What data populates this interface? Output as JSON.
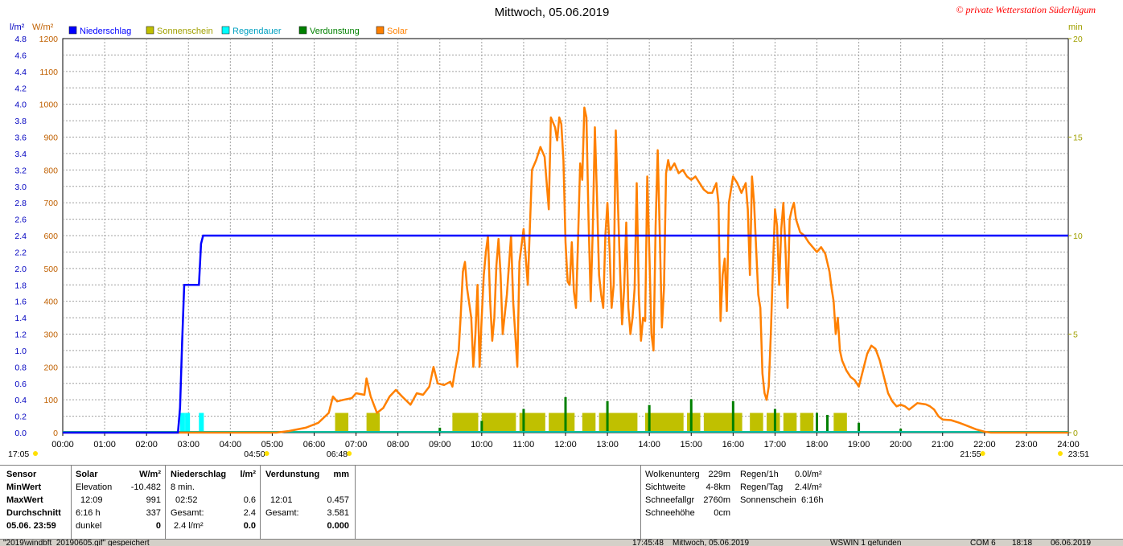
{
  "chart_data": {
    "type": "line",
    "title": "Mittwoch, 05.06.2019",
    "copyright": "© private Wetterstation Süderlügum",
    "units": {
      "left_rain": "l/m²",
      "left_solar": "W/m²",
      "right": "min"
    },
    "legend": [
      {
        "name": "Niederschlag",
        "color": "#0000ff"
      },
      {
        "name": "Sonnenschein",
        "color": "#c0c000"
      },
      {
        "name": "Regendauer",
        "color": "#00ffff"
      },
      {
        "name": "Verdunstung",
        "color": "#008000"
      },
      {
        "name": "Solar",
        "color": "#ff8000"
      }
    ],
    "x_ticks": [
      "00:00",
      "01:00",
      "02:00",
      "03:00",
      "04:00",
      "05:00",
      "06:00",
      "07:00",
      "08:00",
      "09:00",
      "10:00",
      "11:00",
      "12:00",
      "13:00",
      "14:00",
      "15:00",
      "16:00",
      "17:00",
      "18:00",
      "19:00",
      "20:00",
      "21:00",
      "22:00",
      "23:00",
      "24:00"
    ],
    "solar_ticks": [
      "1200",
      "1100",
      "1000",
      "900",
      "800",
      "700",
      "600",
      "500",
      "400",
      "300",
      "200",
      "100",
      "0"
    ],
    "rain_ticks": [
      "4.8",
      "4.6",
      "4.4",
      "4.2",
      "4.0",
      "3.8",
      "3.6",
      "3.4",
      "3.2",
      "3.0",
      "2.8",
      "2.6",
      "2.4",
      "2.2",
      "2.0",
      "1.8",
      "1.6",
      "1.4",
      "1.2",
      "1.0",
      "0.8",
      "0.6",
      "0.4",
      "0.2",
      "0.0"
    ],
    "right_ticks": [
      "20",
      "15",
      "10",
      "5",
      "0"
    ],
    "ylim_solar": [
      0,
      1200
    ],
    "ylim_rain": [
      0,
      4.8
    ],
    "ylim_right": [
      0,
      20
    ],
    "xlim_hours": [
      0,
      24
    ],
    "grid": true,
    "astro_labels": [
      {
        "text": "17:05",
        "pos": "bottom-left"
      },
      {
        "text": "04:50",
        "hour": 4.83
      },
      {
        "text": "06:48",
        "hour": 6.8
      },
      {
        "text": "21:55",
        "hour": 21.92
      },
      {
        "text": "23:51",
        "pos": "bottom-right"
      }
    ],
    "rain_series": [
      [
        0,
        0
      ],
      [
        2.75,
        0
      ],
      [
        2.8,
        0.3
      ],
      [
        2.85,
        1.1
      ],
      [
        2.9,
        1.8
      ],
      [
        3.25,
        1.8
      ],
      [
        3.3,
        2.3
      ],
      [
        3.35,
        2.4
      ],
      [
        24,
        2.4
      ]
    ],
    "rain_duration": [
      [
        2.8,
        1
      ],
      [
        2.92,
        1
      ],
      [
        3.25,
        1
      ]
    ],
    "sunshine": [
      [
        6.5,
        1
      ],
      [
        7.25,
        1
      ],
      [
        9.3,
        1
      ],
      [
        9.6,
        1
      ],
      [
        10.0,
        1
      ],
      [
        10.2,
        1
      ],
      [
        10.5,
        1
      ],
      [
        10.9,
        1
      ],
      [
        11.2,
        1
      ],
      [
        11.6,
        1
      ],
      [
        11.9,
        1
      ],
      [
        12.4,
        1
      ],
      [
        12.8,
        1
      ],
      [
        13.0,
        1
      ],
      [
        13.2,
        1
      ],
      [
        13.4,
        1
      ],
      [
        13.9,
        1
      ],
      [
        14.2,
        1
      ],
      [
        14.5,
        1
      ],
      [
        14.9,
        1
      ],
      [
        15.3,
        1
      ],
      [
        15.6,
        1
      ],
      [
        15.9,
        1
      ],
      [
        16.4,
        1
      ],
      [
        16.8,
        1
      ],
      [
        17.2,
        1
      ],
      [
        17.6,
        1
      ],
      [
        18.4,
        1
      ]
    ],
    "evaporation": [
      [
        9.0,
        0.25
      ],
      [
        10.0,
        0.6
      ],
      [
        11.0,
        1.2
      ],
      [
        12.0,
        1.8
      ],
      [
        13.0,
        1.6
      ],
      [
        14.0,
        1.4
      ],
      [
        15.0,
        1.7
      ],
      [
        16.0,
        1.6
      ],
      [
        17.0,
        1.2
      ],
      [
        18.0,
        1.0
      ],
      [
        18.25,
        0.9
      ],
      [
        19.0,
        0.5
      ],
      [
        20.0,
        0.2
      ],
      [
        21.9,
        0.1
      ]
    ],
    "solar_series": [
      [
        0,
        0
      ],
      [
        5.1,
        0
      ],
      [
        5.4,
        5
      ],
      [
        5.8,
        15
      ],
      [
        6.1,
        30
      ],
      [
        6.35,
        60
      ],
      [
        6.45,
        110
      ],
      [
        6.55,
        95
      ],
      [
        6.7,
        100
      ],
      [
        6.9,
        105
      ],
      [
        7.0,
        120
      ],
      [
        7.2,
        115
      ],
      [
        7.25,
        165
      ],
      [
        7.35,
        110
      ],
      [
        7.5,
        60
      ],
      [
        7.65,
        75
      ],
      [
        7.8,
        110
      ],
      [
        7.95,
        130
      ],
      [
        8.1,
        110
      ],
      [
        8.3,
        85
      ],
      [
        8.45,
        120
      ],
      [
        8.6,
        115
      ],
      [
        8.75,
        140
      ],
      [
        8.85,
        200
      ],
      [
        8.95,
        150
      ],
      [
        9.1,
        145
      ],
      [
        9.25,
        155
      ],
      [
        9.3,
        140
      ],
      [
        9.35,
        180
      ],
      [
        9.45,
        250
      ],
      [
        9.5,
        360
      ],
      [
        9.55,
        490
      ],
      [
        9.6,
        520
      ],
      [
        9.65,
        440
      ],
      [
        9.75,
        350
      ],
      [
        9.8,
        200
      ],
      [
        9.85,
        300
      ],
      [
        9.9,
        450
      ],
      [
        9.95,
        200
      ],
      [
        10.0,
        350
      ],
      [
        10.05,
        480
      ],
      [
        10.1,
        550
      ],
      [
        10.15,
        600
      ],
      [
        10.2,
        400
      ],
      [
        10.25,
        280
      ],
      [
        10.3,
        350
      ],
      [
        10.35,
        510
      ],
      [
        10.4,
        590
      ],
      [
        10.45,
        480
      ],
      [
        10.5,
        300
      ],
      [
        10.6,
        420
      ],
      [
        10.7,
        600
      ],
      [
        10.75,
        400
      ],
      [
        10.85,
        200
      ],
      [
        10.9,
        520
      ],
      [
        11.0,
        620
      ],
      [
        11.1,
        450
      ],
      [
        11.2,
        800
      ],
      [
        11.3,
        830
      ],
      [
        11.4,
        870
      ],
      [
        11.5,
        840
      ],
      [
        11.6,
        680
      ],
      [
        11.65,
        960
      ],
      [
        11.75,
        930
      ],
      [
        11.8,
        890
      ],
      [
        11.85,
        960
      ],
      [
        11.9,
        940
      ],
      [
        11.95,
        830
      ],
      [
        12.0,
        580
      ],
      [
        12.05,
        460
      ],
      [
        12.1,
        450
      ],
      [
        12.15,
        580
      ],
      [
        12.2,
        430
      ],
      [
        12.25,
        380
      ],
      [
        12.3,
        590
      ],
      [
        12.35,
        820
      ],
      [
        12.4,
        770
      ],
      [
        12.45,
        990
      ],
      [
        12.5,
        960
      ],
      [
        12.55,
        650
      ],
      [
        12.6,
        400
      ],
      [
        12.65,
        620
      ],
      [
        12.7,
        930
      ],
      [
        12.75,
        720
      ],
      [
        12.8,
        480
      ],
      [
        12.85,
        420
      ],
      [
        12.9,
        380
      ],
      [
        12.95,
        600
      ],
      [
        13.0,
        700
      ],
      [
        13.05,
        560
      ],
      [
        13.1,
        380
      ],
      [
        13.15,
        450
      ],
      [
        13.2,
        920
      ],
      [
        13.25,
        700
      ],
      [
        13.3,
        500
      ],
      [
        13.35,
        330
      ],
      [
        13.4,
        440
      ],
      [
        13.45,
        640
      ],
      [
        13.5,
        380
      ],
      [
        13.55,
        300
      ],
      [
        13.6,
        350
      ],
      [
        13.65,
        440
      ],
      [
        13.7,
        760
      ],
      [
        13.75,
        420
      ],
      [
        13.8,
        280
      ],
      [
        13.85,
        350
      ],
      [
        13.9,
        340
      ],
      [
        13.95,
        780
      ],
      [
        14.0,
        550
      ],
      [
        14.05,
        300
      ],
      [
        14.1,
        250
      ],
      [
        14.15,
        630
      ],
      [
        14.2,
        860
      ],
      [
        14.25,
        600
      ],
      [
        14.3,
        320
      ],
      [
        14.35,
        440
      ],
      [
        14.4,
        790
      ],
      [
        14.45,
        830
      ],
      [
        14.5,
        800
      ],
      [
        14.6,
        820
      ],
      [
        14.7,
        790
      ],
      [
        14.8,
        800
      ],
      [
        14.9,
        780
      ],
      [
        15.0,
        770
      ],
      [
        15.1,
        780
      ],
      [
        15.2,
        760
      ],
      [
        15.3,
        740
      ],
      [
        15.4,
        730
      ],
      [
        15.5,
        730
      ],
      [
        15.6,
        760
      ],
      [
        15.65,
        700
      ],
      [
        15.7,
        340
      ],
      [
        15.75,
        480
      ],
      [
        15.8,
        530
      ],
      [
        15.85,
        370
      ],
      [
        15.9,
        700
      ],
      [
        16.0,
        780
      ],
      [
        16.1,
        760
      ],
      [
        16.2,
        730
      ],
      [
        16.3,
        760
      ],
      [
        16.35,
        680
      ],
      [
        16.4,
        480
      ],
      [
        16.45,
        780
      ],
      [
        16.5,
        700
      ],
      [
        16.55,
        560
      ],
      [
        16.6,
        420
      ],
      [
        16.65,
        380
      ],
      [
        16.7,
        180
      ],
      [
        16.75,
        120
      ],
      [
        16.8,
        100
      ],
      [
        16.85,
        140
      ],
      [
        16.9,
        300
      ],
      [
        16.95,
        500
      ],
      [
        17.0,
        680
      ],
      [
        17.05,
        630
      ],
      [
        17.1,
        450
      ],
      [
        17.15,
        620
      ],
      [
        17.2,
        700
      ],
      [
        17.25,
        560
      ],
      [
        17.3,
        380
      ],
      [
        17.35,
        650
      ],
      [
        17.4,
        680
      ],
      [
        17.45,
        700
      ],
      [
        17.5,
        650
      ],
      [
        17.6,
        610
      ],
      [
        17.7,
        600
      ],
      [
        17.8,
        580
      ],
      [
        17.9,
        565
      ],
      [
        18.0,
        550
      ],
      [
        18.1,
        565
      ],
      [
        18.2,
        545
      ],
      [
        18.3,
        490
      ],
      [
        18.35,
        440
      ],
      [
        18.4,
        400
      ],
      [
        18.45,
        300
      ],
      [
        18.5,
        350
      ],
      [
        18.55,
        250
      ],
      [
        18.6,
        220
      ],
      [
        18.7,
        190
      ],
      [
        18.8,
        170
      ],
      [
        18.9,
        160
      ],
      [
        19.0,
        140
      ],
      [
        19.1,
        190
      ],
      [
        19.2,
        240
      ],
      [
        19.3,
        265
      ],
      [
        19.4,
        255
      ],
      [
        19.5,
        220
      ],
      [
        19.6,
        170
      ],
      [
        19.7,
        120
      ],
      [
        19.8,
        95
      ],
      [
        19.9,
        80
      ],
      [
        20.0,
        85
      ],
      [
        20.1,
        80
      ],
      [
        20.2,
        70
      ],
      [
        20.3,
        80
      ],
      [
        20.4,
        90
      ],
      [
        20.5,
        88
      ],
      [
        20.6,
        86
      ],
      [
        20.7,
        80
      ],
      [
        20.8,
        70
      ],
      [
        20.9,
        50
      ],
      [
        21.0,
        40
      ],
      [
        21.2,
        38
      ],
      [
        21.4,
        30
      ],
      [
        21.6,
        20
      ],
      [
        21.8,
        10
      ],
      [
        22.0,
        3
      ],
      [
        22.15,
        0
      ],
      [
        24,
        0
      ]
    ]
  },
  "stats": {
    "headers": {
      "sensor": "Sensor",
      "solar": "Solar",
      "solar_unit": "W/m²",
      "rain": "Niederschlag",
      "rain_unit": "l/m²",
      "evap": "Verdunstung",
      "evap_unit": "mm"
    },
    "min": {
      "label": "MinWert",
      "solar_a": "Elevation",
      "solar_b": "-10.482",
      "rain_a": "8 min."
    },
    "max": {
      "label": "MaxWert",
      "solar_a": "12:09",
      "solar_b": "991",
      "rain_a": "02:52",
      "rain_b": "0.6",
      "evap_a": "12:01",
      "evap_b": "0.457"
    },
    "avg": {
      "label": "Durchschnitt",
      "solar_a": "6:16 h",
      "solar_b": "337",
      "rain_a": "Gesamt:",
      "rain_b": "2.4",
      "evap_a": "Gesamt:",
      "evap_b": "3.581"
    },
    "day": {
      "label": "05.06. 23:59",
      "solar_a": "dunkel",
      "solar_b": "0",
      "rain_a": "2.4 l/m²",
      "rain_b": "0.0",
      "evap_b": "0.000"
    }
  },
  "extra": {
    "wolken_label": "Wolkenunterg",
    "wolken": "229m",
    "sicht_label": "Sichtweite",
    "sicht": "4-8km",
    "schneefall_label": "Schneefallgr",
    "schneefall": "2760m",
    "schnee_label": "Schneehöhe",
    "schnee": "0cm",
    "regen1h_label": "Regen/1h",
    "regen1h": "0.0l/m²",
    "regentag_label": "Regen/Tag",
    "regentag": "2.4l/m²",
    "sonne_label": "Sonnenschein",
    "sonne": "6:16h"
  },
  "status": {
    "left": "\"2019\\windbft_20190605.gif\" gespeichert",
    "time": "17:45:48",
    "date": "Mittwoch, 05.06.2019",
    "wswin": "WSWIN 1 gefunden",
    "com": "COM 6",
    "clock": "18:18",
    "today": "06.06.2019"
  }
}
